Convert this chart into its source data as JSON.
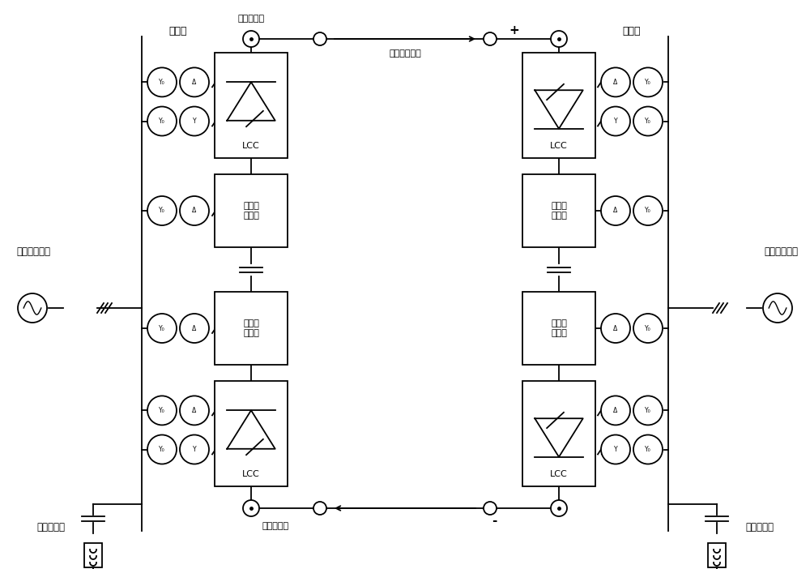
{
  "bg_color": "#ffffff",
  "line_color": "#000000",
  "box_facecolor": "#ffffff",
  "labels": {
    "left_transformer": "变压器",
    "right_transformer": "变压器",
    "left_lcc_top": "LCC",
    "left_lcc_bot": "LCC",
    "right_lcc_top": "LCC",
    "right_lcc_bot": "LCC",
    "left_mmc1": "模块化\n换流器",
    "left_mmc2": "模块化\n换流器",
    "right_mmc1": "模块化\n换流器",
    "right_mmc2": "模块化\n换流器",
    "pingbo_top": "平波电抗器",
    "pingbo_bot": "平波电抗器",
    "dc_line": "直流输电线路",
    "left_grid": "送端交流电网",
    "right_grid": "受端交流电网",
    "left_filter": "无源滤波器",
    "right_filter": "无源滤波器",
    "plus": "+",
    "minus": "-"
  }
}
